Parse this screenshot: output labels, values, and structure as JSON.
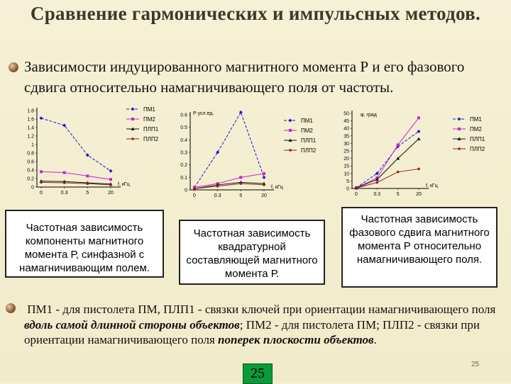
{
  "title": "Сравнение гармонических и импульсных методов.",
  "bullet1": "Зависимости индуцированного магнитного момента Р и его фазового сдвига относительно намагничивающего поля от частоты.",
  "captions": {
    "c1": "Частотная зависимость компоненты магнитного момента Р, синфазной с намагничивающим полем.",
    "c2": "Частотная зависимость квадратурной составляющей магнитного момента Р.",
    "c3": "Частотная зависимость фазового сдвига магнитного момента Р относительно намагничивающего поля."
  },
  "note": {
    "p1": "ПМ1 - для пистолета ПМ, ПЛП1 - связки ключей при ориентации намагничивающего поля ",
    "em1": "вдоль самой длинной стороны объектов",
    "p2": "; ПМ2 - для пистолета ПМ; ПЛП2  - связки при ориентации намагничивающего поля ",
    "em2": "поперек плоскости объектов",
    "p3": "."
  },
  "page_box": "25",
  "page_number": "25",
  "legend": [
    "ПМ1",
    "ПМ2",
    "ПЛП1",
    "ПЛП2"
  ],
  "colors": {
    "pm1": "#1a1acc",
    "pm2": "#cc22cc",
    "plp1": "#111111",
    "plp2": "#8a2222",
    "pagebox": "#0a9a3a"
  },
  "chart_data": [
    {
      "type": "line",
      "title": "",
      "xlabel": "f, кГц",
      "ylabel": "",
      "x": [
        "0",
        "0.3",
        "5",
        "20"
      ],
      "yticks": [
        "1.8",
        "1.6",
        "1.4",
        "1.2",
        "1",
        "0.8",
        "0.6",
        "0.4",
        "0.2",
        "0"
      ],
      "ylim": [
        0,
        1.8
      ],
      "series": [
        {
          "name": "ПМ1",
          "values": [
            1.62,
            1.45,
            0.75,
            0.38
          ]
        },
        {
          "name": "ПМ2",
          "values": [
            0.36,
            0.34,
            0.26,
            0.18
          ]
        },
        {
          "name": "ПЛП1",
          "values": [
            0.14,
            0.13,
            0.1,
            0.07
          ]
        },
        {
          "name": "ПЛП2",
          "values": [
            0.11,
            0.1,
            0.08,
            0.05
          ]
        }
      ]
    },
    {
      "type": "line",
      "title": "Р усл.ед.",
      "xlabel": "f, кГц",
      "ylabel": "",
      "x": [
        "0",
        "0.3",
        "5",
        "20"
      ],
      "yticks": [
        "0.6",
        "0.5",
        "0.4",
        "0.3",
        "0.2",
        "0.1",
        "0"
      ],
      "ylim": [
        0,
        0.6
      ],
      "series": [
        {
          "name": "ПМ1",
          "values": [
            0.02,
            0.3,
            0.62,
            0.1
          ]
        },
        {
          "name": "ПМ2",
          "values": [
            0.02,
            0.05,
            0.1,
            0.13
          ]
        },
        {
          "name": "ПЛП1",
          "values": [
            0.01,
            0.04,
            0.06,
            0.05
          ]
        },
        {
          "name": "ПЛП2",
          "values": [
            0.01,
            0.03,
            0.05,
            0.04
          ]
        }
      ]
    },
    {
      "type": "line",
      "title": "φ, град",
      "xlabel": "f, кГц",
      "ylabel": "",
      "x": [
        "0",
        "0.3",
        "5",
        "20"
      ],
      "yticks": [
        "50",
        "45",
        "40",
        "35",
        "30",
        "25",
        "20",
        "15",
        "10",
        "5",
        "0"
      ],
      "ylim": [
        0,
        50
      ],
      "series": [
        {
          "name": "ПМ1",
          "values": [
            0.5,
            10,
            28,
            38
          ]
        },
        {
          "name": "ПМ2",
          "values": [
            0.5,
            7,
            29,
            47
          ]
        },
        {
          "name": "ПЛП1",
          "values": [
            0.3,
            6,
            20,
            33
          ]
        },
        {
          "name": "ПЛП2",
          "values": [
            0.2,
            4,
            11,
            13
          ]
        }
      ]
    }
  ]
}
